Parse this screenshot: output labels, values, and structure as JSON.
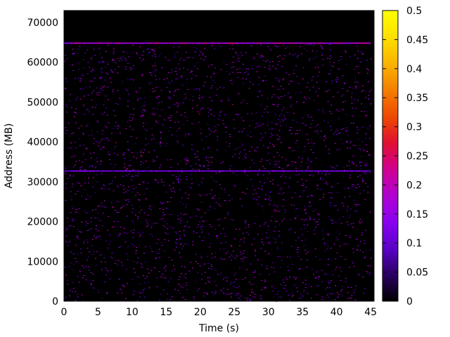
{
  "chart_data": {
    "type": "heatmap",
    "title": "",
    "xlabel": "Time (s)",
    "ylabel": "Address (MB)",
    "xlim": [
      0,
      45.5
    ],
    "ylim": [
      0,
      73000
    ],
    "x_ticks": [
      0,
      5,
      10,
      15,
      20,
      25,
      30,
      35,
      40,
      45
    ],
    "x_tick_labels": [
      "0",
      "5",
      "10",
      "15",
      "20",
      "25",
      "30",
      "35",
      "40",
      "45"
    ],
    "y_ticks": [
      0,
      10000,
      20000,
      30000,
      40000,
      50000,
      60000,
      70000
    ],
    "y_tick_labels": [
      "0",
      "10000",
      "20000",
      "30000",
      "40000",
      "50000",
      "60000",
      "70000"
    ],
    "colorbar": {
      "range": [
        0,
        0.5
      ],
      "ticks": [
        0,
        0.05,
        0.1,
        0.15,
        0.2,
        0.25,
        0.3,
        0.35,
        0.4,
        0.45,
        0.5
      ],
      "tick_labels": [
        "0",
        "0.05",
        "0.1",
        "0.15",
        "0.2",
        "0.25",
        "0.3",
        "0.35",
        "0.4",
        "0.45",
        "0.5"
      ],
      "palette": [
        "#000000",
        "#2a0060",
        "#5a00c8",
        "#8a00f0",
        "#b000d0",
        "#d00090",
        "#e01030",
        "#ee4a00",
        "#f48000",
        "#fab400",
        "#fde000",
        "#ffff00"
      ]
    },
    "background_color": "#000000",
    "data_extent": {
      "x": [
        0,
        45
      ],
      "y": [
        0,
        65000
      ]
    },
    "bands": [
      {
        "y": 64800,
        "intensity": 0.2,
        "note": "dense top band"
      },
      {
        "y": 32700,
        "intensity": 0.12,
        "note": "faint mid band"
      }
    ],
    "scatter_intensity_range": [
      0.05,
      0.22
    ]
  }
}
